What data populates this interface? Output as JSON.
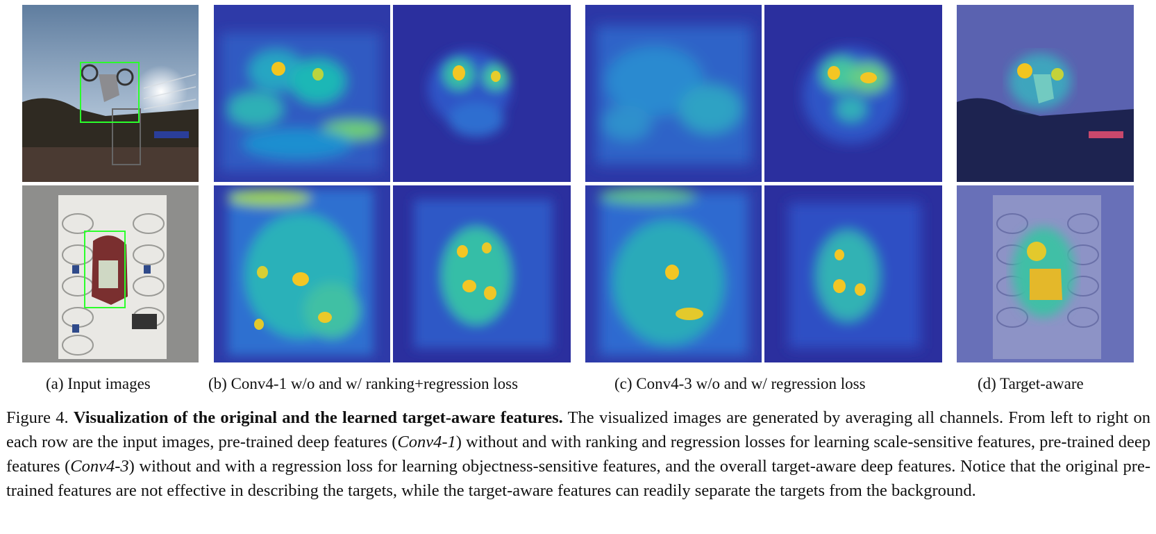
{
  "figure": {
    "subcaptions": {
      "a": "(a)  Input images",
      "b": "(b)  Conv4-1 w/o and w/ ranking+regression loss",
      "c": "(c)  Conv4-3 w/o and w/ regression loss",
      "d": "(d)  Target-aware"
    },
    "caption": {
      "label": "Figure 4.",
      "bold_title": "Visualization of the original and the learned target-aware features.",
      "s1": "The visualized images are generated by averaging all channels. From left to right on each row are the input images, pre-trained deep features (",
      "conv41": "Conv4-1",
      "s2": ") without and with ranking and regression losses for learning scale-sensitive features, pre-trained deep features (",
      "conv43": "Conv4-3",
      "s3": ") without and with a regression loss for learning objectness-sensitive features, and the overall target-aware deep features. Notice that the original pre-trained features are not effective in describing the targets, while the target-aware features can readily separate the targets from the background."
    },
    "colors": {
      "colormap_low": "#2b2f9e",
      "colormap_mid": "#1ea6c8",
      "colormap_high": "#f3c624",
      "bbox": "#2bff2b"
    }
  }
}
